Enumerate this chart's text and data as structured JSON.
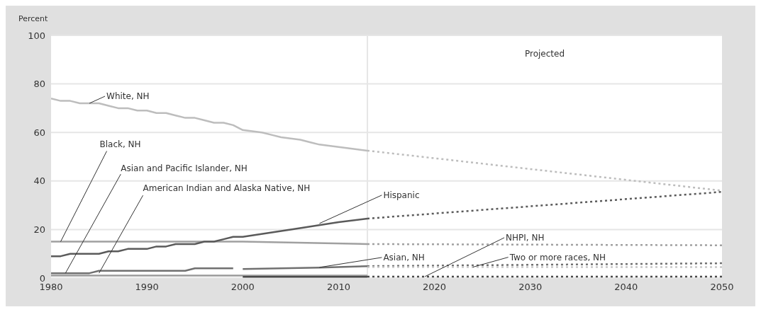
{
  "chart_data": {
    "type": "line",
    "ylabel": "Percent",
    "xlim": [
      1980,
      2050
    ],
    "xticks": [
      1980,
      1990,
      2000,
      2010,
      2020,
      2030,
      2040,
      2050
    ],
    "ylim": [
      0,
      100
    ],
    "yticks": [
      0,
      20,
      40,
      60,
      80,
      100
    ],
    "grid": "y",
    "marker": "none",
    "series": [
      {
        "color": "#bdbdbd",
        "line_style": "solid",
        "x": [
          1980,
          1981,
          1982,
          1983,
          1984,
          1985,
          1986,
          1987,
          1988,
          1989,
          1990,
          1991,
          1992,
          1993,
          1994,
          1995,
          1996,
          1997,
          1998,
          1999,
          2000,
          2001,
          2002,
          2003,
          2004,
          2005,
          2006,
          2007,
          2008,
          2009,
          2010,
          2011,
          2012,
          2013
        ],
        "values": [
          74,
          73,
          73,
          72,
          72,
          72,
          71,
          70,
          70,
          69,
          69,
          68,
          68,
          67,
          66,
          66,
          65,
          64,
          64,
          63,
          61,
          60.5,
          60,
          59,
          58,
          57.5,
          57,
          56,
          55,
          54.5,
          54,
          53.5,
          53,
          52.5
        ]
      },
      {
        "color": "#bdbdbd",
        "line_style": "dotted",
        "x": [
          2013,
          2050
        ],
        "values": [
          52.5,
          36
        ]
      },
      {
        "color": "#a0a0a0",
        "line_style": "solid",
        "x": [
          1980,
          2000,
          2013
        ],
        "values": [
          15,
          15,
          14
        ]
      },
      {
        "color": "#a0a0a0",
        "line_style": "dotted",
        "x": [
          2013,
          2050
        ],
        "values": [
          14,
          13.5
        ]
      },
      {
        "color": "#5a5a5a",
        "line_style": "solid",
        "x": [
          1980,
          1981,
          1982,
          1985,
          1986,
          1987,
          1988,
          1990,
          1991,
          1992,
          1993,
          1995,
          1996,
          1997,
          1998,
          1999,
          2000,
          2005,
          2010,
          2013
        ],
        "values": [
          9,
          9,
          10,
          10,
          11,
          11,
          12,
          12,
          13,
          13,
          14,
          14,
          15,
          15,
          16,
          17,
          17,
          20,
          23,
          24.5
        ]
      },
      {
        "color": "#5a5a5a",
        "line_style": "dotted",
        "x": [
          2013,
          2050
        ],
        "values": [
          24.5,
          35.5
        ]
      },
      {
        "color": "#707070",
        "line_style": "solid",
        "x": [
          1980,
          1984,
          1985,
          1994,
          1995,
          1999
        ],
        "values": [
          2,
          2,
          3,
          3,
          4,
          4
        ]
      },
      {
        "color": "#9a9a9a",
        "line_style": "solid",
        "x": [
          1980,
          2013
        ],
        "values": [
          1,
          1
        ]
      },
      {
        "color": "#707070",
        "line_style": "solid",
        "x": [
          2000,
          2008,
          2013
        ],
        "values": [
          3.7,
          4.3,
          4.9
        ]
      },
      {
        "color": "#707070",
        "line_style": "dotted",
        "x": [
          2013,
          2050
        ],
        "values": [
          4.9,
          6.1
        ]
      },
      {
        "color": "#c8c8c8",
        "line_style": "dotted",
        "x": [
          2013,
          2050
        ],
        "values": [
          4.5,
          4.5
        ]
      },
      {
        "color": "#4a4a4a",
        "line_style": "solid",
        "x": [
          2000,
          2013
        ],
        "values": [
          0.5,
          0.5
        ]
      },
      {
        "color": "#4a4a4a",
        "line_style": "dotted",
        "x": [
          2013,
          2050
        ],
        "values": [
          0.6,
          0.6
        ]
      }
    ],
    "ref_lines": [
      {
        "axis": "x",
        "value": 2013,
        "color": "#e6e6e6"
      }
    ],
    "annotations": [
      "Projected",
      {
        "text": "White, NH",
        "x": 1984,
        "y": 72
      },
      {
        "text": "Black, NH",
        "x": 1981,
        "y": 15
      },
      {
        "text": "Asian and Pacific Islander, NH",
        "x": 1981.5,
        "y": 2
      },
      {
        "text": "American Indian and Alaska Native, NH",
        "x": 1985,
        "y": 2
      },
      {
        "text": "Hispanic",
        "x": 2008,
        "y": 22.5
      },
      {
        "text": "Asian, NH",
        "x": 2008,
        "y": 4.4
      },
      {
        "text": "NHPI, NH",
        "x": 2019,
        "y": 0.6
      },
      {
        "text": "Two or more races, NH",
        "x": 2024,
        "y": 4.5
      }
    ]
  }
}
